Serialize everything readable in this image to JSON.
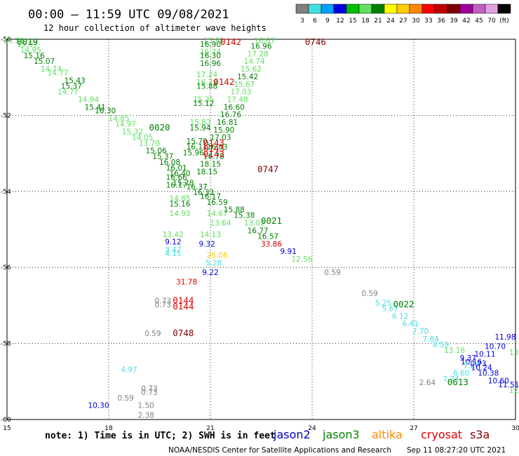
{
  "header": {
    "title": "00:00 – 11:59 UTC 09/08/2021",
    "subtitle": "12 hour collection of altimeter wave heights"
  },
  "colorbar": {
    "colors": [
      "#808080",
      "#40e0e0",
      "#00a0ff",
      "#0000e0",
      "#00c000",
      "#60e060",
      "#008000",
      "#ffff00",
      "#ffcc00",
      "#ff8800",
      "#ff0000",
      "#c00000",
      "#800000",
      "#a000a0",
      "#c060c0",
      "#e0a0e0",
      "#000000"
    ],
    "labels": [
      "3",
      "6",
      "9",
      "12",
      "15",
      "18",
      "21",
      "24",
      "27",
      "30",
      "33",
      "36",
      "39",
      "42",
      "45",
      "70",
      "(ft)"
    ]
  },
  "footer": {
    "note": "note: 1) Time is in UTC; 2) SWH is in feet",
    "credit": "NOAA/NESDIS Center for Satellite Applications and Research",
    "timestamp": "Sep 11 08:27:20 UTC 2021",
    "legend": [
      {
        "name": "jason2",
        "color": "#0000cc"
      },
      {
        "name": "jason3",
        "color": "#008000"
      },
      {
        "name": "altika",
        "color": "#ff8800"
      },
      {
        "name": "cryosat",
        "color": "#e00000"
      },
      {
        "name": "s3a",
        "color": "#800000"
      }
    ]
  },
  "chart_data": {
    "type": "scatter",
    "xlim": [
      15,
      30
    ],
    "ylim": [
      -60,
      -50
    ],
    "xticks": [
      "15",
      "18",
      "21",
      "24",
      "27",
      "30"
    ],
    "yticks": [
      "-50",
      "-52",
      "-54",
      "-56",
      "-58",
      "-60"
    ],
    "grid": true,
    "points": [
      {
        "x": 15.2,
        "y": -50.1,
        "label": "15.36",
        "color": "#60e060"
      },
      {
        "x": 15.6,
        "y": -50.2,
        "label": "15.97",
        "color": "#60e060"
      },
      {
        "x": 15.7,
        "y": -50.35,
        "label": "14.95",
        "color": "#60e060"
      },
      {
        "x": 15.8,
        "y": -50.5,
        "label": "15.16",
        "color": "#008000"
      },
      {
        "x": 16.1,
        "y": -50.65,
        "label": "15.07",
        "color": "#008000"
      },
      {
        "x": 16.3,
        "y": -50.85,
        "label": "14.74",
        "color": "#60e060"
      },
      {
        "x": 16.5,
        "y": -50.95,
        "label": "14.77",
        "color": "#60e060"
      },
      {
        "x": 17.0,
        "y": -51.15,
        "label": "15.43",
        "color": "#008000"
      },
      {
        "x": 16.9,
        "y": -51.3,
        "label": "15.37",
        "color": "#008000"
      },
      {
        "x": 16.8,
        "y": -51.45,
        "label": "14.77",
        "color": "#60e060"
      },
      {
        "x": 17.4,
        "y": -51.65,
        "label": "14.94",
        "color": "#60e060"
      },
      {
        "x": 17.6,
        "y": -51.85,
        "label": "15.41",
        "color": "#008000"
      },
      {
        "x": 17.9,
        "y": -51.95,
        "label": "16.30",
        "color": "#008000"
      },
      {
        "x": 18.3,
        "y": -52.15,
        "label": "14.85",
        "color": "#60e060"
      },
      {
        "x": 18.5,
        "y": -52.3,
        "label": "14.97",
        "color": "#60e060"
      },
      {
        "x": 18.7,
        "y": -52.5,
        "label": "15.32",
        "color": "#60e060"
      },
      {
        "x": 19.0,
        "y": -52.65,
        "label": "14.05",
        "color": "#60e060"
      },
      {
        "x": 19.2,
        "y": -52.8,
        "label": "13.70",
        "color": "#60e060"
      },
      {
        "x": 19.4,
        "y": -53.0,
        "label": "15.06",
        "color": "#008000"
      },
      {
        "x": 19.6,
        "y": -53.15,
        "label": "15.37",
        "color": "#008000"
      },
      {
        "x": 19.8,
        "y": -53.3,
        "label": "16.08",
        "color": "#008000"
      },
      {
        "x": 20.0,
        "y": -53.45,
        "label": "16.01",
        "color": "#008000"
      },
      {
        "x": 20.1,
        "y": -53.6,
        "label": "16.40",
        "color": "#008000"
      },
      {
        "x": 20.0,
        "y": -53.7,
        "label": "16.66",
        "color": "#008000"
      },
      {
        "x": 20.2,
        "y": -53.85,
        "label": "15.78",
        "color": "#008000"
      },
      {
        "x": 20.0,
        "y": -53.9,
        "label": "16.17",
        "color": "#008000"
      },
      {
        "x": 20.6,
        "y": -53.95,
        "label": "16.37",
        "color": "#008000"
      },
      {
        "x": 20.8,
        "y": -54.1,
        "label": "16.32",
        "color": "#008000"
      },
      {
        "x": 21.0,
        "y": -54.2,
        "label": "16.17",
        "color": "#008000"
      },
      {
        "x": 21.2,
        "y": -54.35,
        "label": "16.59",
        "color": "#008000"
      },
      {
        "x": 20.1,
        "y": -54.25,
        "label": "14.85",
        "color": "#60e060"
      },
      {
        "x": 20.1,
        "y": -54.4,
        "label": "15.16",
        "color": "#008000"
      },
      {
        "x": 20.1,
        "y": -54.65,
        "label": "14.93",
        "color": "#60e060"
      },
      {
        "x": 21.2,
        "y": -54.65,
        "label": "14.67",
        "color": "#60e060"
      },
      {
        "x": 21.3,
        "y": -54.9,
        "label": "13.64",
        "color": "#60e060"
      },
      {
        "x": 21.0,
        "y": -55.2,
        "label": "14.13",
        "color": "#60e060"
      },
      {
        "x": 19.9,
        "y": -55.2,
        "label": "13.42",
        "color": "#60e060"
      },
      {
        "x": 19.9,
        "y": -55.4,
        "label": "9.12",
        "color": "#0000e0"
      },
      {
        "x": 20.9,
        "y": -55.45,
        "label": "9.32",
        "color": "#0000e0"
      },
      {
        "x": 19.9,
        "y": -55.6,
        "label": "3.47",
        "color": "#40e0e0"
      },
      {
        "x": 19.9,
        "y": -55.7,
        "label": "4.15",
        "color": "#40e0e0"
      },
      {
        "x": 21.2,
        "y": -55.75,
        "label": "26.06",
        "color": "#ffcc00"
      },
      {
        "x": 21.1,
        "y": -55.95,
        "label": "5.28",
        "color": "#40e0e0"
      },
      {
        "x": 21.0,
        "y": -56.2,
        "label": "9.22",
        "color": "#0000e0"
      },
      {
        "x": 20.3,
        "y": -56.45,
        "label": "31.78",
        "color": "#e00000"
      },
      {
        "x": 21.1,
        "y": -50.1,
        "label": "15.91",
        "color": "#60e060"
      },
      {
        "x": 21.0,
        "y": -50.2,
        "label": "16.90",
        "color": "#008000"
      },
      {
        "x": 21.0,
        "y": -50.4,
        "label": "16.74",
        "color": "#60e060"
      },
      {
        "x": 21.0,
        "y": -50.5,
        "label": "16.30",
        "color": "#008000"
      },
      {
        "x": 21.0,
        "y": -50.7,
        "label": "16.96",
        "color": "#008000"
      },
      {
        "x": 20.9,
        "y": -51.0,
        "label": "17.24",
        "color": "#60e060"
      },
      {
        "x": 20.9,
        "y": -51.2,
        "label": "16.79",
        "color": "#60e060"
      },
      {
        "x": 20.9,
        "y": -51.3,
        "label": "15.88",
        "color": "#008000"
      },
      {
        "x": 20.8,
        "y": -51.65,
        "label": "15.35",
        "color": "#60e060"
      },
      {
        "x": 20.8,
        "y": -51.75,
        "label": "15.12",
        "color": "#008000"
      },
      {
        "x": 20.7,
        "y": -52.25,
        "label": "15.82",
        "color": "#60e060"
      },
      {
        "x": 20.7,
        "y": -52.4,
        "label": "15.94",
        "color": "#008000"
      },
      {
        "x": 20.6,
        "y": -52.75,
        "label": "15.70",
        "color": "#008000"
      },
      {
        "x": 20.6,
        "y": -52.9,
        "label": "16.11",
        "color": "#008000"
      },
      {
        "x": 20.5,
        "y": -53.05,
        "label": "15.96",
        "color": "#008000"
      },
      {
        "x": 22.6,
        "y": -50.1,
        "label": "16.67",
        "color": "#60e060"
      },
      {
        "x": 22.5,
        "y": -50.25,
        "label": "16.96",
        "color": "#008000"
      },
      {
        "x": 22.4,
        "y": -50.45,
        "label": "17.28",
        "color": "#60e060"
      },
      {
        "x": 22.3,
        "y": -50.65,
        "label": "14.74",
        "color": "#60e060"
      },
      {
        "x": 22.2,
        "y": -50.85,
        "label": "15.62",
        "color": "#60e060"
      },
      {
        "x": 22.1,
        "y": -51.05,
        "label": "15.42",
        "color": "#008000"
      },
      {
        "x": 22.0,
        "y": -51.25,
        "label": "15.67",
        "color": "#60e060"
      },
      {
        "x": 21.9,
        "y": -51.45,
        "label": "17.03",
        "color": "#60e060"
      },
      {
        "x": 21.8,
        "y": -51.65,
        "label": "17.48",
        "color": "#60e060"
      },
      {
        "x": 21.7,
        "y": -51.85,
        "label": "16.60",
        "color": "#008000"
      },
      {
        "x": 21.6,
        "y": -52.05,
        "label": "16.76",
        "color": "#008000"
      },
      {
        "x": 21.5,
        "y": -52.25,
        "label": "16.81",
        "color": "#008000"
      },
      {
        "x": 21.4,
        "y": -52.45,
        "label": "15.90",
        "color": "#008000"
      },
      {
        "x": 21.3,
        "y": -52.65,
        "label": "17.03",
        "color": "#008000"
      },
      {
        "x": 21.2,
        "y": -52.9,
        "label": "16.83",
        "color": "#008000"
      },
      {
        "x": 21.1,
        "y": -53.15,
        "label": "16.78",
        "color": "#008000"
      },
      {
        "x": 21.0,
        "y": -53.35,
        "label": "18.15",
        "color": "#008000"
      },
      {
        "x": 20.9,
        "y": -53.55,
        "label": "18.15",
        "color": "#008000"
      },
      {
        "x": 21.7,
        "y": -54.55,
        "label": "15.88",
        "color": "#008000"
      },
      {
        "x": 22.0,
        "y": -54.7,
        "label": "15.38",
        "color": "#008000"
      },
      {
        "x": 22.3,
        "y": -54.9,
        "label": "13.02",
        "color": "#60e060"
      },
      {
        "x": 22.4,
        "y": -55.1,
        "label": "16.77",
        "color": "#008000"
      },
      {
        "x": 22.7,
        "y": -55.25,
        "label": "16.57",
        "color": "#008000"
      },
      {
        "x": 22.8,
        "y": -55.45,
        "label": "33.86",
        "color": "#c00000"
      },
      {
        "x": 23.3,
        "y": -55.65,
        "label": "9.91",
        "color": "#0000e0"
      },
      {
        "x": 23.7,
        "y": -55.85,
        "label": "12.56",
        "color": "#60e060"
      },
      {
        "x": 24.6,
        "y": -56.2,
        "label": "0.59",
        "color": "#808080"
      },
      {
        "x": 25.7,
        "y": -56.75,
        "label": "0.59",
        "color": "#808080"
      },
      {
        "x": 26.1,
        "y": -57.0,
        "label": "5.25",
        "color": "#40e0e0"
      },
      {
        "x": 26.3,
        "y": -57.15,
        "label": "5.67",
        "color": "#40e0e0"
      },
      {
        "x": 26.6,
        "y": -57.35,
        "label": "6.12",
        "color": "#40e0e0"
      },
      {
        "x": 26.9,
        "y": -57.55,
        "label": "6.41",
        "color": "#40e0e0"
      },
      {
        "x": 27.2,
        "y": -57.75,
        "label": "7.70",
        "color": "#40e0e0"
      },
      {
        "x": 27.5,
        "y": -57.95,
        "label": "7.84",
        "color": "#40e0e0"
      },
      {
        "x": 27.8,
        "y": -58.1,
        "label": "8.59",
        "color": "#40e0e0"
      },
      {
        "x": 28.2,
        "y": -58.25,
        "label": "13.16",
        "color": "#60e060"
      },
      {
        "x": 28.6,
        "y": -58.45,
        "label": "9.37",
        "color": "#0000e0"
      },
      {
        "x": 28.9,
        "y": -58.6,
        "label": "8.73",
        "color": "#0000e0"
      },
      {
        "x": 28.7,
        "y": -58.55,
        "label": "10.16",
        "color": "#0000e0"
      },
      {
        "x": 29.1,
        "y": -58.35,
        "label": "10.11",
        "color": "#0000e0"
      },
      {
        "x": 29.4,
        "y": -58.15,
        "label": "10.70",
        "color": "#0000e0"
      },
      {
        "x": 29.7,
        "y": -57.9,
        "label": "11.98",
        "color": "#0000e0"
      },
      {
        "x": 28.7,
        "y": -58.65,
        "label": "7.27",
        "color": "#40e0e0"
      },
      {
        "x": 29.0,
        "y": -58.7,
        "label": "10.24",
        "color": "#0000e0"
      },
      {
        "x": 28.4,
        "y": -58.85,
        "label": "6.60",
        "color": "#40e0e0"
      },
      {
        "x": 29.2,
        "y": -58.85,
        "label": "10.38",
        "color": "#0000e0"
      },
      {
        "x": 28.1,
        "y": -59.0,
        "label": "7.74",
        "color": "#40e0e0"
      },
      {
        "x": 29.5,
        "y": -59.05,
        "label": "10.60",
        "color": "#0000e0"
      },
      {
        "x": 27.4,
        "y": -59.1,
        "label": "2.64",
        "color": "#808080"
      },
      {
        "x": 29.8,
        "y": -59.15,
        "label": "11.51",
        "color": "#0000e0"
      },
      {
        "x": 29.95,
        "y": -58.3,
        "label": "13",
        "color": "#60e060"
      },
      {
        "x": 29.95,
        "y": -59.3,
        "label": "12",
        "color": "#60e060"
      },
      {
        "x": 18.6,
        "y": -58.75,
        "label": "4.97",
        "color": "#40e0e0"
      },
      {
        "x": 19.2,
        "y": -59.25,
        "label": "0.73",
        "color": "#808080"
      },
      {
        "x": 19.2,
        "y": -59.35,
        "label": "0.73",
        "color": "#808080"
      },
      {
        "x": 18.5,
        "y": -59.5,
        "label": "0.59",
        "color": "#808080"
      },
      {
        "x": 17.7,
        "y": -59.7,
        "label": "10.30",
        "color": "#0000e0"
      },
      {
        "x": 19.1,
        "y": -59.7,
        "label": "1.50",
        "color": "#808080"
      },
      {
        "x": 19.1,
        "y": -59.95,
        "label": "2.38",
        "color": "#808080"
      },
      {
        "x": 19.6,
        "y": -56.95,
        "label": "0.73",
        "color": "#808080"
      },
      {
        "x": 19.6,
        "y": -57.05,
        "label": "0.73",
        "color": "#808080"
      },
      {
        "x": 19.3,
        "y": -57.8,
        "label": "0.59",
        "color": "#808080"
      }
    ],
    "passes": [
      {
        "x": 15.6,
        "y": -50.15,
        "label": "0019",
        "color": "#008000"
      },
      {
        "x": 21.6,
        "y": -50.15,
        "label": "0142",
        "color": "#e00000"
      },
      {
        "x": 21.4,
        "y": -51.2,
        "label": "0142",
        "color": "#e00000"
      },
      {
        "x": 24.1,
        "y": -50.15,
        "label": "0746",
        "color": "#800000"
      },
      {
        "x": 19.5,
        "y": -52.4,
        "label": "0020",
        "color": "#008000"
      },
      {
        "x": 21.1,
        "y": -52.8,
        "label": "0143",
        "color": "#e00000"
      },
      {
        "x": 21.1,
        "y": -52.95,
        "label": "0143",
        "color": "#e00000"
      },
      {
        "x": 21.1,
        "y": -53.1,
        "label": "0143",
        "color": "#e00000"
      },
      {
        "x": 22.7,
        "y": -53.5,
        "label": "0747",
        "color": "#800000"
      },
      {
        "x": 22.8,
        "y": -54.85,
        "label": "0021",
        "color": "#008000"
      },
      {
        "x": 20.2,
        "y": -56.95,
        "label": "0144",
        "color": "#e00000"
      },
      {
        "x": 20.2,
        "y": -57.1,
        "label": "0144",
        "color": "#e00000"
      },
      {
        "x": 20.2,
        "y": -57.8,
        "label": "0748",
        "color": "#800000"
      },
      {
        "x": 26.7,
        "y": -57.05,
        "label": "0022",
        "color": "#008000"
      },
      {
        "x": 28.3,
        "y": -59.1,
        "label": "0613",
        "color": "#008000"
      }
    ]
  }
}
